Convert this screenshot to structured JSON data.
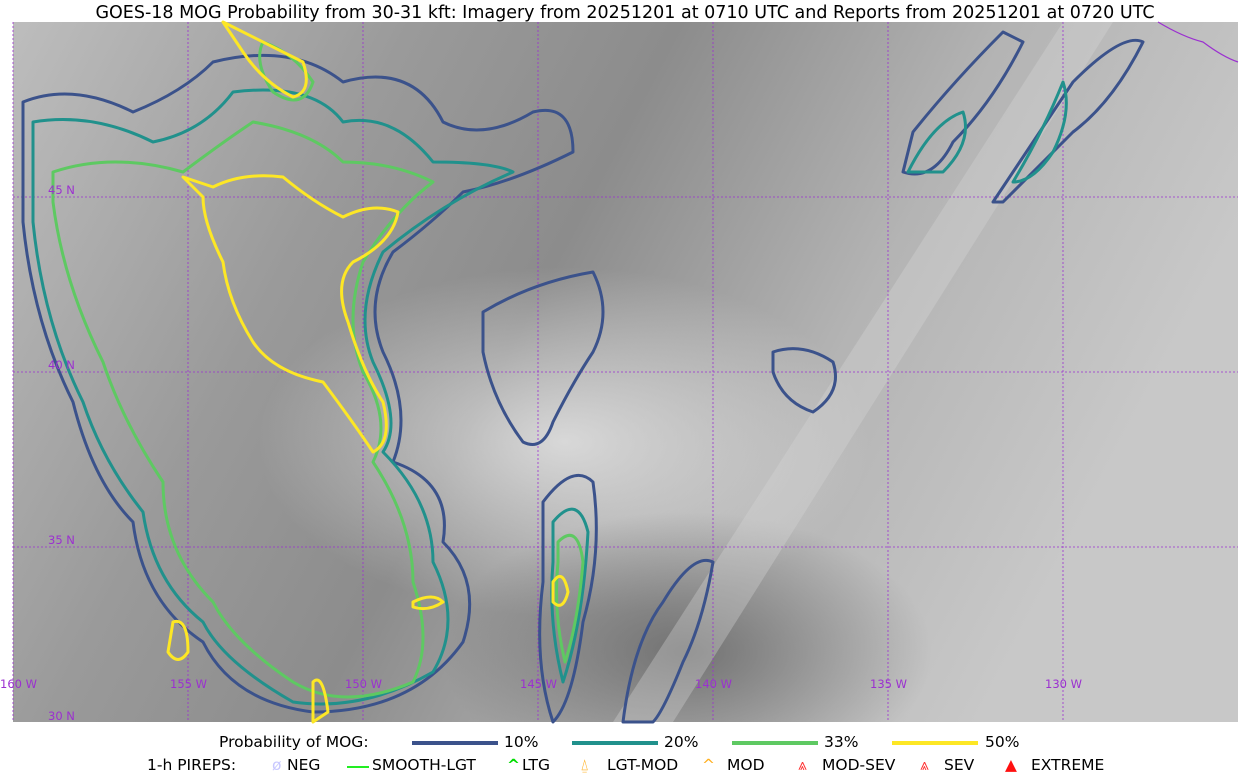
{
  "title": "GOES-18 MOG Probability from 30-31 kft: Imagery from 20251201 at 0710 UTC and Reports from 20251201 at 0720 UTC",
  "map": {
    "lon_labels": [
      "160 W",
      "155 W",
      "150 W",
      "145 W",
      "140 W",
      "135 W",
      "130 W"
    ],
    "lat_labels": [
      "45 N",
      "40 N",
      "35 N",
      "30 N"
    ],
    "grid_color": "#9b30d0"
  },
  "legend": {
    "prob_label": "Probability of MOG:",
    "levels": [
      {
        "label": "10%",
        "color": "#3b528b"
      },
      {
        "label": "20%",
        "color": "#21918c"
      },
      {
        "label": "33%",
        "color": "#5ec962"
      },
      {
        "label": "50%",
        "color": "#fde725"
      }
    ],
    "pirep_label": "1-h PIREPS:",
    "pireps": [
      {
        "label": "NEG",
        "color": "#c8c8ff",
        "icon": "neg-icon"
      },
      {
        "label": "SMOOTH-LGT",
        "color": "#22ee22",
        "icon": "smooth-lgt-icon"
      },
      {
        "label": "LTG",
        "color": "#00dd00",
        "icon": "ltg-caret-icon"
      },
      {
        "label": "LGT-MOD",
        "color": "#ffb020",
        "icon": "lgt-mod-icon"
      },
      {
        "label": "MOD",
        "color": "#ffb020",
        "icon": "mod-caret-icon"
      },
      {
        "label": "MOD-SEV",
        "color": "#ff3030",
        "icon": "mod-sev-icon"
      },
      {
        "label": "SEV",
        "color": "#ff3030",
        "icon": "sev-icon"
      },
      {
        "label": "EXTREME",
        "color": "#ff1010",
        "icon": "extreme-triangle-icon"
      }
    ]
  }
}
